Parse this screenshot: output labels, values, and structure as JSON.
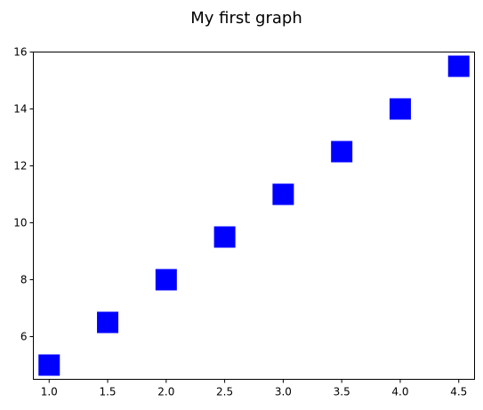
{
  "chart_data": {
    "type": "scatter",
    "title": "My first graph",
    "xlabel": "",
    "ylabel": "",
    "xlim": [
      0.865,
      4.635
    ],
    "ylim": [
      4.5,
      16
    ],
    "xticks": [
      "1.0",
      "1.5",
      "2.0",
      "2.5",
      "3.0",
      "3.5",
      "4.0",
      "4.5"
    ],
    "yticks": [
      "6",
      "8",
      "10",
      "12",
      "14",
      "16"
    ],
    "grid": false,
    "marker": "square",
    "marker_color": "#0000ff",
    "series": [
      {
        "x": [
          1.0,
          1.5,
          2.0,
          2.5,
          3.0,
          3.5,
          4.0,
          4.5
        ],
        "y": [
          5.0,
          6.5,
          8.0,
          9.5,
          11.0,
          12.5,
          14.0,
          15.5
        ]
      }
    ]
  }
}
